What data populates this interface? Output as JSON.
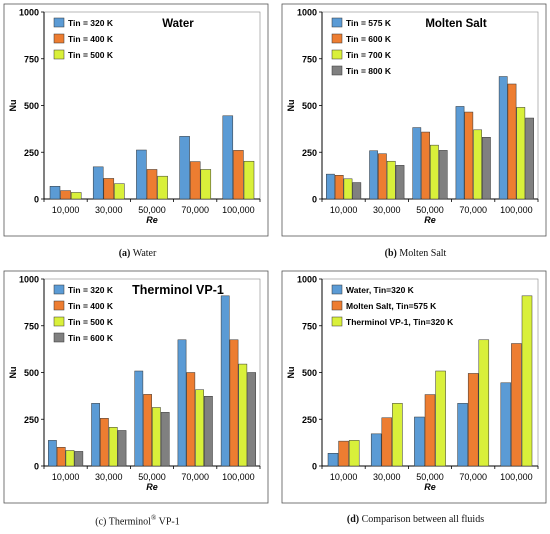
{
  "chart_data": [
    {
      "type": "bar",
      "title": "Water",
      "xlabel": "Re",
      "ylabel": "Nu",
      "ylim": [
        0,
        1000
      ],
      "yticks": [
        0,
        250,
        500,
        750,
        1000
      ],
      "categories": [
        "10,000",
        "30,000",
        "50,000",
        "70,000",
        "100,000"
      ],
      "legend_position": "top-left",
      "series": [
        {
          "name": "Tin = 320 K",
          "color": "#5b9bd5",
          "values": [
            68,
            172,
            262,
            335,
            445
          ]
        },
        {
          "name": "Tin = 400 K",
          "color": "#ed7d31",
          "values": [
            45,
            110,
            158,
            200,
            260
          ]
        },
        {
          "name": "Tin = 500 K",
          "color": "#d9f03a",
          "values": [
            35,
            82,
            122,
            158,
            202
          ]
        }
      ]
    },
    {
      "type": "bar",
      "title": "Molten Salt",
      "xlabel": "Re",
      "ylabel": "Nu",
      "ylim": [
        0,
        1000
      ],
      "yticks": [
        0,
        250,
        500,
        750,
        1000
      ],
      "categories": [
        "10,000",
        "30,000",
        "50,000",
        "70,000",
        "100,000"
      ],
      "legend_position": "top-left",
      "series": [
        {
          "name": "Tin = 575 K",
          "color": "#5b9bd5",
          "values": [
            133,
            258,
            382,
            495,
            655
          ]
        },
        {
          "name": "Tin = 600 K",
          "color": "#ed7d31",
          "values": [
            127,
            242,
            358,
            465,
            615
          ]
        },
        {
          "name": "Tin = 700 K",
          "color": "#d9f03a",
          "values": [
            108,
            202,
            288,
            370,
            490
          ]
        },
        {
          "name": "Tin = 800 K",
          "color": "#808080",
          "values": [
            88,
            180,
            260,
            330,
            433
          ]
        }
      ]
    },
    {
      "type": "bar",
      "title": "Therminol VP-1",
      "xlabel": "Re",
      "ylabel": "Nu",
      "ylim": [
        0,
        1000
      ],
      "yticks": [
        0,
        250,
        500,
        750,
        1000
      ],
      "categories": [
        "10,000",
        "30,000",
        "50,000",
        "70,000",
        "100,000"
      ],
      "legend_position": "top-left",
      "series": [
        {
          "name": "Tin = 320 K",
          "color": "#5b9bd5",
          "values": [
            137,
            335,
            508,
            675,
            910
          ]
        },
        {
          "name": "Tin = 400 K",
          "color": "#ed7d31",
          "values": [
            100,
            255,
            383,
            500,
            675
          ]
        },
        {
          "name": "Tin = 500 K",
          "color": "#d9f03a",
          "values": [
            83,
            207,
            313,
            408,
            545
          ]
        },
        {
          "name": "Tin = 600 K",
          "color": "#808080",
          "values": [
            78,
            190,
            287,
            373,
            500
          ]
        }
      ]
    },
    {
      "type": "bar",
      "title": "",
      "xlabel": "Re",
      "ylabel": "Nu",
      "ylim": [
        0,
        1000
      ],
      "yticks": [
        0,
        250,
        500,
        750,
        1000
      ],
      "categories": [
        "10,000",
        "30,000",
        "50,000",
        "70,000",
        "100,000"
      ],
      "legend_position": "top-left",
      "series": [
        {
          "name": "Water, Tin=320 K",
          "color": "#5b9bd5",
          "values": [
            68,
            172,
            262,
            335,
            445
          ]
        },
        {
          "name": "Molten Salt, Tin=575 K",
          "color": "#ed7d31",
          "values": [
            133,
            258,
            382,
            495,
            655
          ]
        },
        {
          "name": "Therminol VP-1, Tin=320 K",
          "color": "#d9f03a",
          "values": [
            137,
            335,
            508,
            675,
            910
          ]
        }
      ]
    }
  ],
  "captions": [
    {
      "label": "(a)",
      "text": "Water"
    },
    {
      "label": "(b)",
      "text": "Molten Salt"
    },
    {
      "label": "(c)",
      "text": "Therminol",
      "sup": "®",
      "tail": "VP-1"
    },
    {
      "label": "(d)",
      "text": "Comparison between all fluids"
    }
  ]
}
